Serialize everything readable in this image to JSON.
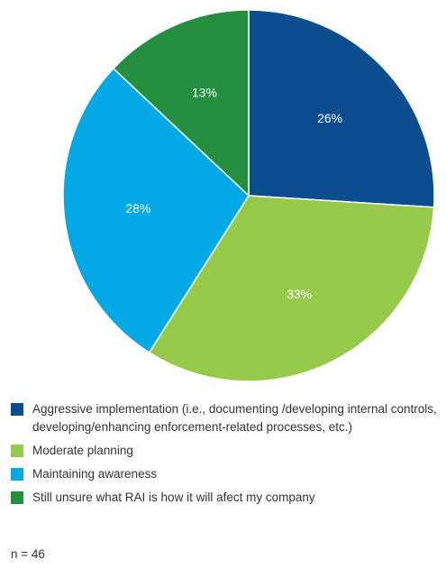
{
  "chart_data": {
    "type": "pie",
    "categories": [
      "Aggressive implementation (i.e., documenting /developing internal controls, developing/enhancing enforcement-related processes, etc.)",
      "Moderate planning",
      "Maintaining awareness",
      "Still unsure what RAI is how it will afect my company"
    ],
    "values": [
      26,
      33,
      28,
      13
    ],
    "value_labels": [
      "26%",
      "33%",
      "28%",
      "13%"
    ],
    "colors": [
      "#0b4d8f",
      "#97c94b",
      "#03a9e4",
      "#24903f"
    ],
    "note": "n = 46"
  }
}
